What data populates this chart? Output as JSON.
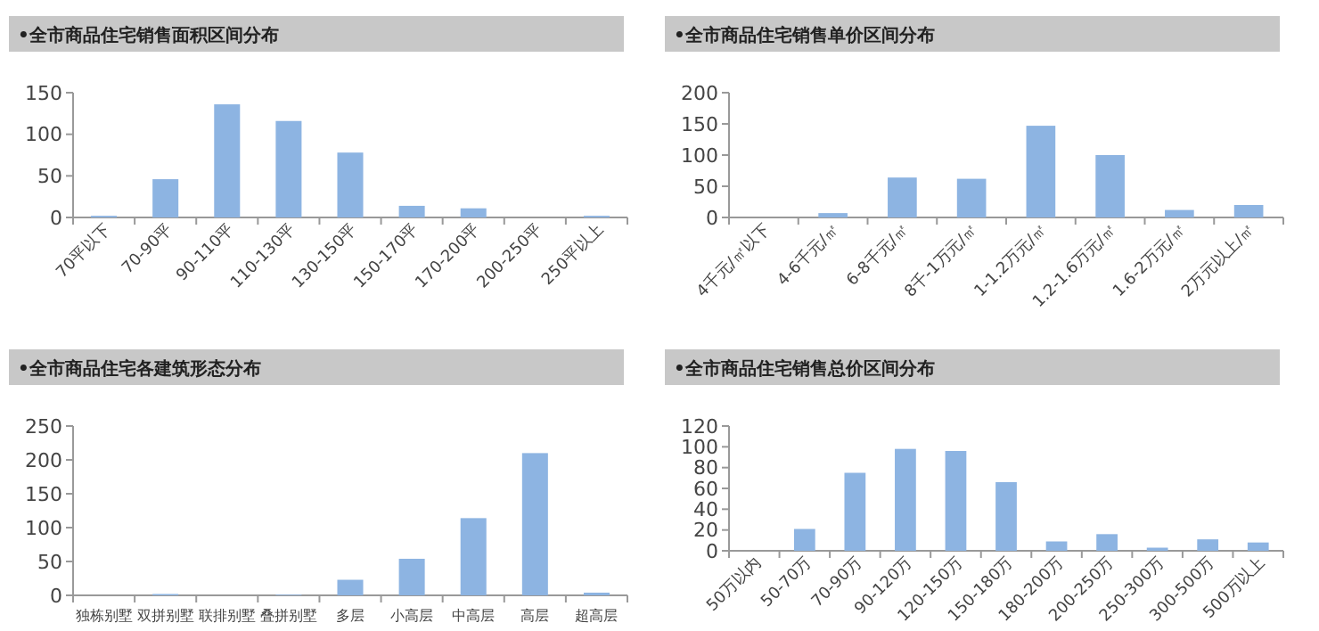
{
  "chart_data": [
    {
      "type": "bar",
      "title": "•全市商品住宅销售面积区间分布",
      "categories": [
        "70平以下",
        "70-90平",
        "90-110平",
        "110-130平",
        "130-150平",
        "150-170平",
        "170-200平",
        "200-250平",
        "250平以上"
      ],
      "values": [
        2,
        46,
        136,
        116,
        78,
        14,
        11,
        0,
        2
      ],
      "color": "#8db4e2",
      "ylim": [
        0,
        150
      ],
      "yticks": [
        0,
        50,
        100,
        150
      ],
      "grid": false
    },
    {
      "type": "bar",
      "title": "•全市商品住宅销售单价区间分布",
      "categories": [
        "4千元/㎡以下",
        "4-6千元/㎡",
        "6-8千元/㎡",
        "8千-1万元/㎡",
        "1-1.2万元/㎡",
        "1.2-1.6万元/㎡",
        "1.6-2万元/㎡",
        "2万元以上/㎡"
      ],
      "values": [
        0,
        7,
        64,
        62,
        147,
        100,
        12,
        20
      ],
      "color": "#8db4e2",
      "ylim": [
        0,
        200
      ],
      "yticks": [
        0,
        50,
        100,
        150,
        200
      ],
      "grid": false
    },
    {
      "type": "bar",
      "title": "•全市商品住宅各建筑形态分布",
      "categories": [
        "独栋别墅",
        "双拼别墅",
        "联排别墅",
        "叠拼别墅",
        "多层",
        "小高层",
        "中高层",
        "高层",
        "超高层"
      ],
      "values": [
        0,
        2,
        0,
        1,
        23,
        54,
        114,
        210,
        4
      ],
      "color": "#8db4e2",
      "ylim": [
        0,
        250
      ],
      "yticks": [
        0,
        50,
        100,
        150,
        200,
        250
      ],
      "grid": false
    },
    {
      "type": "bar",
      "title": "•全市商品住宅销售总价区间分布",
      "categories": [
        "50万以内",
        "50-70万",
        "70-90万",
        "90-120万",
        "120-150万",
        "150-180万",
        "180-200万",
        "200-250万",
        "250-300万",
        "300-500万",
        "500万以上"
      ],
      "values": [
        0,
        21,
        75,
        98,
        96,
        66,
        9,
        16,
        3,
        11,
        8
      ],
      "color": "#8db4e2",
      "ylim": [
        0,
        120
      ],
      "yticks": [
        0,
        20,
        40,
        60,
        80,
        100,
        120
      ],
      "grid": false
    }
  ]
}
